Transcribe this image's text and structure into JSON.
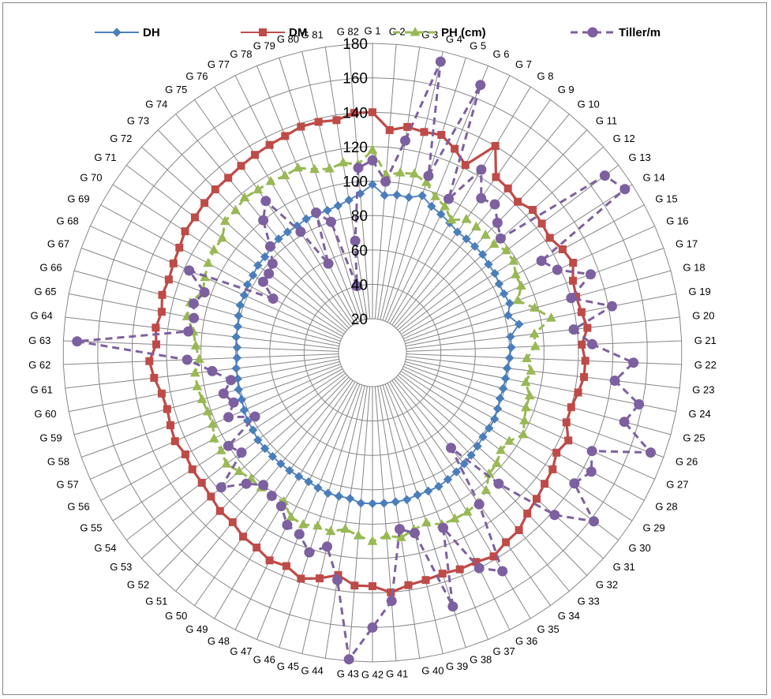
{
  "chart_data": {
    "type": "radar",
    "title": "",
    "categories": [
      "G 1",
      "G 2",
      "G 3",
      "G 4",
      "G 5",
      "G 6",
      "G 7",
      "G 8",
      "G 9",
      "G 10",
      "G 11",
      "G 12",
      "G 13",
      "G 14",
      "G 15",
      "G 16",
      "G 17",
      "G 18",
      "G 19",
      "G 20",
      "G 21",
      "G 22",
      "G 23",
      "G 24",
      "G 25",
      "G 26",
      "G 27",
      "G 28",
      "G 29",
      "G 30",
      "G 31",
      "G 32",
      "G 33",
      "G 34",
      "G 35",
      "G 36",
      "G 37",
      "G 38",
      "G 39",
      "G 40",
      "G 41",
      "G 42",
      "G 43",
      "G 44",
      "G 45",
      "G 46",
      "G 47",
      "G 48",
      "G 49",
      "G 50",
      "G 51",
      "G 52",
      "G 53",
      "G 54",
      "G 55",
      "G 56",
      "G 57",
      "G 58",
      "G 59",
      "G 60",
      "G 61",
      "G 62",
      "G 63",
      "G 64",
      "G 65",
      "G 66",
      "G 67",
      "G 68",
      "G 69",
      "G 70",
      "G 71",
      "G 72",
      "G 73",
      "G 74",
      "G 75",
      "G 76",
      "G 77",
      "G 78",
      "G 79",
      "G 80",
      "G 81",
      "G 82"
    ],
    "radial_axis": {
      "min": 20,
      "max": 180,
      "step": 20,
      "tick_labels": [
        "20",
        "40",
        "60",
        "80",
        "100",
        "120",
        "140",
        "160",
        "180"
      ]
    },
    "legend_position": "top",
    "series": [
      {
        "name": "DH",
        "color": "#4a7ebb",
        "marker": "diamond",
        "dash": "solid",
        "values": [
          98,
          92,
          93,
          93,
          96,
          92,
          90,
          88,
          86,
          86,
          86,
          86,
          85,
          85,
          84,
          84,
          85,
          82,
          87,
          81,
          81,
          80,
          79,
          79,
          79,
          79,
          80,
          81,
          81,
          81,
          82,
          83,
          84,
          85,
          86,
          87,
          87,
          87,
          88,
          88,
          88,
          88,
          88,
          86,
          86,
          86,
          85,
          84,
          84,
          84,
          84,
          84,
          84,
          84,
          83,
          83,
          82,
          81,
          81,
          80,
          80,
          79,
          79,
          80,
          80,
          81,
          82,
          82,
          83,
          83,
          84,
          84,
          85,
          86,
          86,
          86,
          87,
          87,
          87,
          88,
          90,
          93
        ]
      },
      {
        "name": "DM",
        "color": "#be4b48",
        "marker": "square",
        "dash": "solid",
        "values": [
          140,
          130,
          133,
          132,
          133,
          128,
          122,
          140,
          125,
          124,
          122,
          125,
          124,
          123,
          126,
          128,
          124,
          123,
          124,
          126,
          122,
          124,
          124,
          122,
          120,
          120,
          125,
          122,
          125,
          126,
          128,
          130,
          134,
          135,
          138,
          136,
          136,
          135,
          136,
          137,
          140,
          136,
          136,
          131,
          135,
          138,
          134,
          135,
          132,
          131,
          128,
          128,
          126,
          125,
          125,
          124,
          126,
          125,
          124,
          125,
          128,
          130,
          126,
          127,
          125,
          127,
          126,
          127,
          128,
          130,
          130,
          131,
          132,
          132,
          133,
          134,
          135,
          136,
          138,
          138,
          137,
          140
        ]
      },
      {
        "name": "PH (cm)",
        "color": "#98b954",
        "marker": "triangle",
        "dash": "dash",
        "values": [
          118,
          104,
          106,
          107,
          104,
          98,
          95,
          90,
          95,
          95,
          95,
          95,
          98,
          98,
          95,
          95,
          90,
          98,
          106,
          95,
          95,
          90,
          93,
          91,
          95,
          95,
          97,
          100,
          95,
          94,
          97,
          98,
          104,
          107,
          108,
          108,
          108,
          104,
          106,
          109,
          107,
          110,
          107,
          104,
          107,
          106,
          108,
          107,
          101,
          102,
          102,
          102,
          104,
          107,
          105,
          105,
          102,
          102,
          103,
          104,
          104,
          101,
          103,
          105,
          110,
          110,
          105,
          107,
          109,
          110,
          110,
          115,
          115,
          117,
          116,
          116,
          115,
          116,
          112,
          110,
          112,
          110
        ]
      },
      {
        "name": "Tiller/m",
        "color": "#7d60a0",
        "marker": "circle",
        "dash": "dash",
        "values": [
          112,
          100,
          125,
          174,
          108,
          168,
          100,
          124,
          110,
          112,
          105,
          100,
          170,
          175,
          112,
          118,
          135,
          120,
          142,
          118,
          128,
          152,
          142,
          158,
          152,
          172,
          140,
          145,
          140,
          162,
          142,
          106,
          72,
          108,
          148,
          140,
          110,
          155,
          108,
          104,
          145,
          160,
          179,
          134,
          116,
          122,
          114,
          112,
          104,
          102,
          100,
          106,
          118,
          96,
          100,
          78,
          92,
          86,
          90,
          84,
          94,
          108,
          172,
          108,
          106,
          108,
          104,
          117,
          66,
          76,
          76,
          78,
          86,
          100,
          108,
          82,
          58,
          88,
          80,
          40,
          66,
          108
        ]
      }
    ]
  }
}
